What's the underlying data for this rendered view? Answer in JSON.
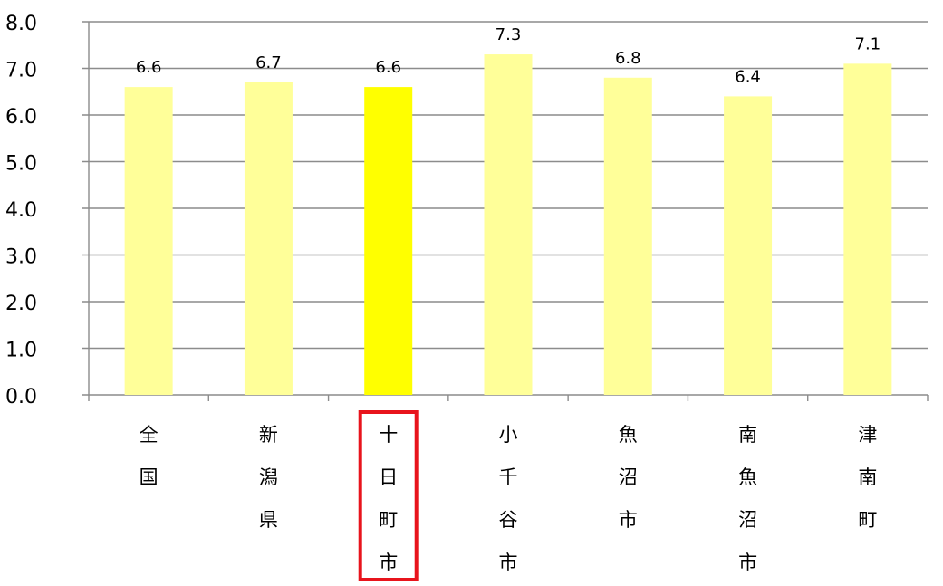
{
  "chart_data": {
    "type": "bar",
    "categories": [
      "全国",
      "新潟県",
      "十日町市",
      "小千谷市",
      "魚沼市",
      "南魚沼市",
      "津南町"
    ],
    "values": [
      6.6,
      6.7,
      6.6,
      7.3,
      6.8,
      6.4,
      7.1
    ],
    "value_labels": [
      "6.6",
      "6.7",
      "6.6",
      "7.3",
      "6.8",
      "6.4",
      "7.1"
    ],
    "title": "",
    "xlabel": "",
    "ylabel": "",
    "ylim": [
      0,
      8
    ],
    "yticks": [
      "0.0",
      "1.0",
      "2.0",
      "3.0",
      "4.0",
      "5.0",
      "6.0",
      "7.0",
      "8.0"
    ],
    "grid": true,
    "legend": "none",
    "highlight_index": 2,
    "colors": {
      "bar": "#FFFF99",
      "highlight_bar": "#FFFF00",
      "grid": "#8C8C8C",
      "highlight_frame": "#E8141C",
      "text": "#000000"
    }
  }
}
